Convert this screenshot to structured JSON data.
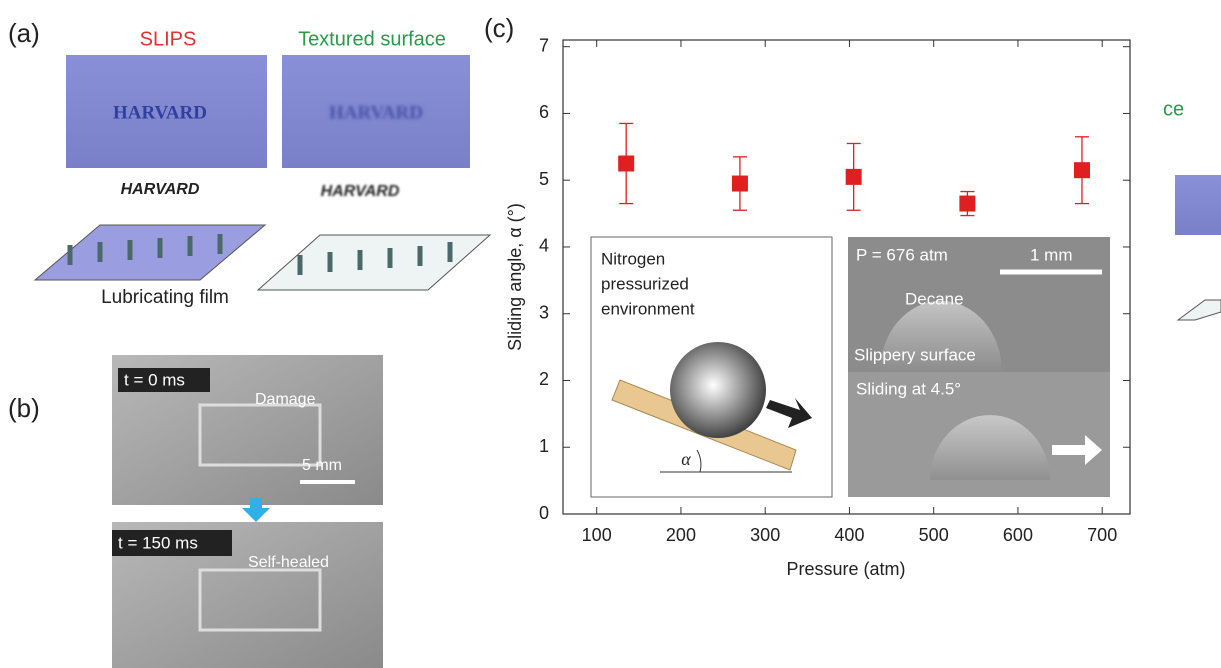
{
  "panel_a": {
    "label": "(a)",
    "left_title": "SLIPS",
    "right_title": "Textured surface",
    "photo_text": "HARVARD",
    "film_label": "Lubricating film"
  },
  "panel_b": {
    "label": "(b)",
    "time_top": "t = 0 ms",
    "damage": "Damage",
    "scale": "5 mm",
    "time_bottom": "t = 150 ms",
    "healed": "Self-healed"
  },
  "cropped_text": "ce",
  "chart_data": {
    "type": "scatter",
    "label": "(c)",
    "x_label": "Pressure (atm)",
    "y_label": "Sliding angle, α (°)",
    "x": [
      135,
      270,
      405,
      540,
      676
    ],
    "values": [
      5.25,
      4.95,
      5.05,
      4.65,
      5.15
    ],
    "errors": [
      0.6,
      0.4,
      0.5,
      0.18,
      0.5
    ],
    "color": "#e02020",
    "xlim": [
      60,
      733
    ],
    "ylim": [
      0,
      7.1
    ],
    "xticks": [
      100,
      200,
      300,
      400,
      500,
      600,
      700
    ],
    "yticks": [
      0,
      1,
      2,
      3,
      4,
      5,
      6,
      7
    ],
    "inset_left": {
      "text": [
        "Nitrogen",
        "pressurized",
        "environment"
      ],
      "angle": "α"
    },
    "inset_right": {
      "pressure": "P = 676 atm",
      "scale": "1 mm",
      "liquid": "Decane",
      "surface": "Slippery surface",
      "sliding": "Sliding at 4.5°"
    }
  }
}
